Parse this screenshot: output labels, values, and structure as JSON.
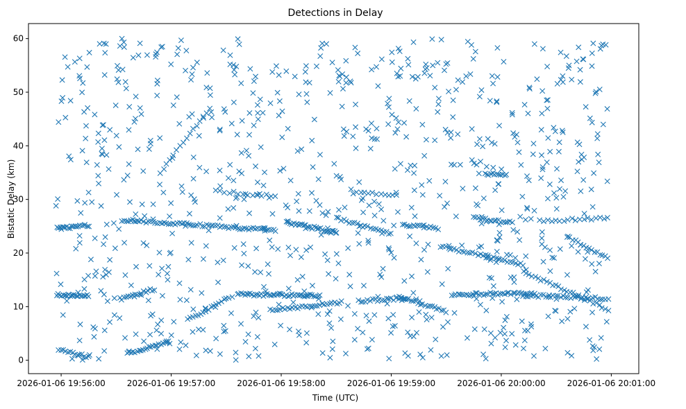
{
  "chart_data": {
    "type": "scatter",
    "title": "Detections in Delay",
    "xlabel": "Time (UTC)",
    "ylabel": "Bistatic Delay (km)",
    "x_unit": "minutes since 2026-01-06 19:56:00",
    "xlim": [
      -0.297,
      5.25
    ],
    "ylim": [
      -2.5,
      62.8
    ],
    "x_ticks": [
      {
        "value": 0,
        "label": "2026-01-06 19:56:00"
      },
      {
        "value": 1,
        "label": "2026-01-06 19:57:00"
      },
      {
        "value": 2,
        "label": "2026-01-06 19:58:00"
      },
      {
        "value": 3,
        "label": "2026-01-06 19:59:00"
      },
      {
        "value": 4,
        "label": "2026-01-06 20:00:00"
      },
      {
        "value": 5,
        "label": "2026-01-06 20:01:00"
      }
    ],
    "y_ticks": [
      0,
      10,
      20,
      30,
      40,
      50,
      60
    ],
    "marker": "x",
    "color": "#1f77b4",
    "grid": false,
    "series": [
      {
        "name": "Detections",
        "seed": 20260106,
        "x_range": [
          -0.05,
          4.97
        ],
        "noise_count": 900,
        "noise_y_range": [
          0,
          60
        ],
        "tracks": [
          {
            "x": [
              -0.04,
              0.25
            ],
            "y": [
              12.2,
              12.0
            ],
            "n": 22
          },
          {
            "x": [
              -0.04,
              0.25
            ],
            "y": [
              24.6,
              25.1
            ],
            "n": 20
          },
          {
            "x": [
              -0.02,
              0.25
            ],
            "y": [
              1.9,
              0.6
            ],
            "n": 14
          },
          {
            "x": [
              0.6,
              0.98
            ],
            "y": [
              1.2,
              3.4
            ],
            "n": 22
          },
          {
            "x": [
              0.55,
              0.85
            ],
            "y": [
              11.5,
              13.3
            ],
            "n": 16
          },
          {
            "x": [
              0.55,
              1.95
            ],
            "y": [
              26.2,
              24.2
            ],
            "n": 70
          },
          {
            "x": [
              0.9,
              1.35
            ],
            "y": [
              35.0,
              47.0
            ],
            "n": 16
          },
          {
            "x": [
              1.15,
              1.55
            ],
            "y": [
              7.5,
              12.0
            ],
            "n": 18
          },
          {
            "x": [
              1.4,
              1.95
            ],
            "y": [
              31.5,
              30.6
            ],
            "n": 14
          },
          {
            "x": [
              1.6,
              2.35
            ],
            "y": [
              12.3,
              12.0
            ],
            "n": 45
          },
          {
            "x": [
              1.9,
              2.55
            ],
            "y": [
              9.3,
              10.8
            ],
            "n": 30
          },
          {
            "x": [
              2.05,
              2.5
            ],
            "y": [
              25.8,
              23.8
            ],
            "n": 30
          },
          {
            "x": [
              2.5,
              3.0
            ],
            "y": [
              26.5,
              23.5
            ],
            "n": 22
          },
          {
            "x": [
              2.7,
              3.15
            ],
            "y": [
              11.0,
              11.6
            ],
            "n": 22
          },
          {
            "x": [
              2.65,
              3.05
            ],
            "y": [
              31.3,
              30.8
            ],
            "n": 12
          },
          {
            "x": [
              3.05,
              3.5
            ],
            "y": [
              12.0,
              9.0
            ],
            "n": 22
          },
          {
            "x": [
              3.1,
              3.4
            ],
            "y": [
              25.3,
              24.8
            ],
            "n": 16
          },
          {
            "x": [
              3.45,
              4.2
            ],
            "y": [
              21.2,
              17.8
            ],
            "n": 32
          },
          {
            "x": [
              3.55,
              4.3
            ],
            "y": [
              12.3,
              12.5
            ],
            "n": 40
          },
          {
            "x": [
              3.75,
              4.1
            ],
            "y": [
              26.5,
              25.8
            ],
            "n": 18
          },
          {
            "x": [
              3.85,
              4.05
            ],
            "y": [
              34.8,
              34.5
            ],
            "n": 12
          },
          {
            "x": [
              4.2,
              4.97
            ],
            "y": [
              12.1,
              11.5
            ],
            "n": 35
          },
          {
            "x": [
              4.2,
              4.97
            ],
            "y": [
              16.5,
              9.5
            ],
            "n": 30
          },
          {
            "x": [
              4.35,
              4.97
            ],
            "y": [
              26.0,
              26.5
            ],
            "n": 18
          },
          {
            "x": [
              4.6,
              4.97
            ],
            "y": [
              23.0,
              19.0
            ],
            "n": 16
          }
        ]
      }
    ]
  }
}
